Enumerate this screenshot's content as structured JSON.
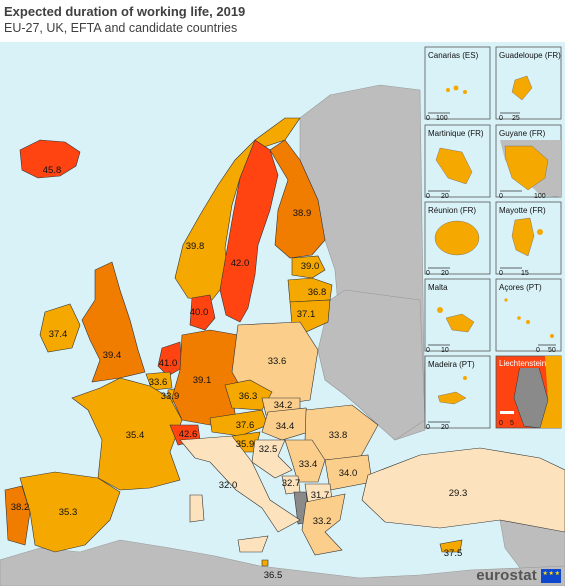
{
  "header": {
    "title": "Expected duration of working life, 2019",
    "subtitle": "EU-27, UK, EFTA and candidate countries"
  },
  "colors": {
    "sea": "#d9f2f7",
    "non_data_land": "#bdbdbd",
    "no_data": "#8a8a8a",
    "class_highest": "#ff4412",
    "class_high": "#f07d00",
    "class_mid": "#f5a800",
    "class_low": "#fbcf8b",
    "class_lowest": "#fde3bd"
  },
  "countries": [
    {
      "name": "IS",
      "value": "45.8",
      "cls": "class_highest"
    },
    {
      "name": "NO",
      "value": "39.8",
      "cls": "class_mid"
    },
    {
      "name": "SE",
      "value": "42.0",
      "cls": "class_highest"
    },
    {
      "name": "FI",
      "value": "38.9",
      "cls": "class_high"
    },
    {
      "name": "EE",
      "value": "39.0",
      "cls": "class_mid"
    },
    {
      "name": "LV",
      "value": "36.8",
      "cls": "class_mid"
    },
    {
      "name": "LT",
      "value": "37.1",
      "cls": "class_mid"
    },
    {
      "name": "DK",
      "value": "40.0",
      "cls": "class_highest"
    },
    {
      "name": "IE",
      "value": "37.4",
      "cls": "class_mid"
    },
    {
      "name": "UK",
      "value": "39.4",
      "cls": "class_high"
    },
    {
      "name": "NL",
      "value": "41.0",
      "cls": "class_highest"
    },
    {
      "name": "BE",
      "value": "33.6",
      "cls": "class_mid"
    },
    {
      "name": "LU",
      "value": "33.9",
      "cls": "class_mid"
    },
    {
      "name": "DE",
      "value": "39.1",
      "cls": "class_high"
    },
    {
      "name": "PL",
      "value": "33.6",
      "cls": "class_low"
    },
    {
      "name": "CZ",
      "value": "36.3",
      "cls": "class_mid"
    },
    {
      "name": "SK",
      "value": "34.2",
      "cls": "class_low"
    },
    {
      "name": "FR",
      "value": "35.4",
      "cls": "class_mid"
    },
    {
      "name": "CH",
      "value": "42.6",
      "cls": "class_highest"
    },
    {
      "name": "AT",
      "value": "37.6",
      "cls": "class_mid"
    },
    {
      "name": "HU",
      "value": "34.4",
      "cls": "class_low"
    },
    {
      "name": "SI",
      "value": "35.9",
      "cls": "class_mid"
    },
    {
      "name": "HR",
      "value": "32.5",
      "cls": "class_lowest"
    },
    {
      "name": "RO",
      "value": "33.8",
      "cls": "class_low"
    },
    {
      "name": "RS",
      "value": "33.4",
      "cls": "class_low"
    },
    {
      "name": "BG",
      "value": "34.0",
      "cls": "class_low"
    },
    {
      "name": "ME",
      "value": "32.7",
      "cls": "class_lowest"
    },
    {
      "name": "MK",
      "value": "31.7",
      "cls": "class_lowest"
    },
    {
      "name": "EL",
      "value": "33.2",
      "cls": "class_low"
    },
    {
      "name": "TR",
      "value": "29.3",
      "cls": "class_lowest"
    },
    {
      "name": "IT",
      "value": "32.0",
      "cls": "class_lowest"
    },
    {
      "name": "ES",
      "value": "35.3",
      "cls": "class_mid"
    },
    {
      "name": "PT",
      "value": "38.2",
      "cls": "class_high"
    },
    {
      "name": "CY",
      "value": "37.5",
      "cls": "class_mid"
    },
    {
      "name": "MT",
      "value": "36.5",
      "cls": "class_mid"
    }
  ],
  "insets": [
    {
      "name": "Canarias (ES)",
      "scale": [
        "0",
        "100"
      ]
    },
    {
      "name": "Guadeloupe (FR)",
      "scale": [
        "0",
        "25"
      ]
    },
    {
      "name": "Martinique (FR)",
      "scale": [
        "0",
        "20"
      ]
    },
    {
      "name": "Guyane (FR)",
      "scale": [
        "0",
        "100"
      ]
    },
    {
      "name": "Réunion (FR)",
      "scale": [
        "0",
        "20"
      ]
    },
    {
      "name": "Mayotte (FR)",
      "scale": [
        "0",
        "15"
      ]
    },
    {
      "name": "Malta",
      "scale": [
        "0",
        "10"
      ]
    },
    {
      "name": "Açores (PT)",
      "scale": [
        "0",
        "50"
      ]
    },
    {
      "name": "Madeira (PT)",
      "scale": [
        "0",
        "20"
      ]
    },
    {
      "name": "Liechtenstein",
      "scale": [
        "0",
        "5"
      ]
    }
  ],
  "footer": {
    "brand": "eurostat",
    "flag_stars": "★ ★ ★"
  }
}
